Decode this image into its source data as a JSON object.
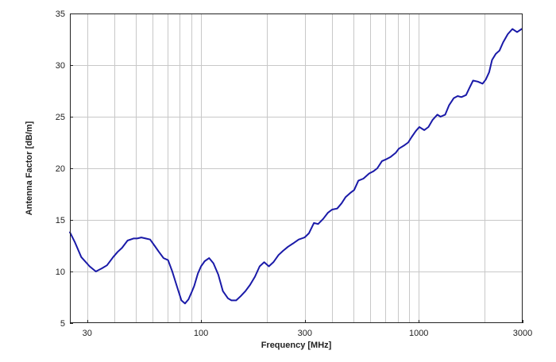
{
  "chart_data": {
    "type": "line",
    "title": "",
    "xlabel": "Frequency [MHz]",
    "ylabel": "Antenna Factor [dB/m]",
    "xscale": "log",
    "xlim": [
      25,
      3000
    ],
    "ylim": [
      5,
      35
    ],
    "xticks": [
      30,
      100,
      300,
      1000,
      3000
    ],
    "xtick_labels": [
      "30",
      "100",
      "300",
      "1000",
      "3000"
    ],
    "yticks": [
      5,
      10,
      15,
      20,
      25,
      30,
      35
    ],
    "ytick_labels": [
      "5",
      "10",
      "15",
      "20",
      "25",
      "30",
      "35"
    ],
    "grid": true,
    "line_color": "#1a1aa8",
    "series": [
      {
        "x": [
          25,
          26.4,
          28.2,
          30.8,
          32.9,
          35.0,
          37.0,
          39.5,
          41.4,
          43.4,
          46.0,
          49.0,
          50.9,
          53.2,
          55.7,
          58.4,
          61.2,
          64.1,
          67.3,
          70.6,
          73.8,
          77.7,
          81.3,
          84.4,
          87.6,
          90.6,
          93.1,
          96.7,
          100,
          104,
          109,
          114,
          120,
          126,
          133,
          138,
          145,
          152,
          160,
          168,
          177,
          186,
          195,
          205,
          215,
          227,
          238,
          251,
          264,
          281,
          299,
          313,
          330,
          345,
          364,
          383,
          400,
          422,
          442,
          461,
          484,
          505,
          528,
          557,
          592,
          618,
          645,
          678,
          713,
          742,
          784,
          810,
          855,
          894,
          926,
          969,
          1006,
          1060,
          1108,
          1158,
          1217,
          1259,
          1323,
          1377,
          1448,
          1509,
          1570,
          1650,
          1711,
          1777,
          1868,
          1964,
          2032,
          2104,
          2171,
          2260,
          2348,
          2441,
          2563,
          2692,
          2828,
          2971
        ],
        "y": [
          13.8,
          12.8,
          11.4,
          10.5,
          10.0,
          10.3,
          10.6,
          11.4,
          11.9,
          12.3,
          13.0,
          13.2,
          13.2,
          13.3,
          13.2,
          13.1,
          12.5,
          11.9,
          11.3,
          11.1,
          10.0,
          8.5,
          7.2,
          6.9,
          7.3,
          8.0,
          8.6,
          9.8,
          10.5,
          11.0,
          11.3,
          10.8,
          9.7,
          8.1,
          7.4,
          7.2,
          7.2,
          7.6,
          8.1,
          8.7,
          9.5,
          10.5,
          10.9,
          10.5,
          10.9,
          11.6,
          12.0,
          12.4,
          12.7,
          13.1,
          13.3,
          13.7,
          14.7,
          14.6,
          15.1,
          15.7,
          16.0,
          16.1,
          16.6,
          17.2,
          17.6,
          17.9,
          18.8,
          19.0,
          19.5,
          19.7,
          20.0,
          20.7,
          20.9,
          21.1,
          21.5,
          21.9,
          22.2,
          22.5,
          23.0,
          23.6,
          24.0,
          23.7,
          24.0,
          24.7,
          25.2,
          25.0,
          25.2,
          26.1,
          26.8,
          27.0,
          26.9,
          27.1,
          27.8,
          28.5,
          28.4,
          28.2,
          28.6,
          29.3,
          30.5,
          31.1,
          31.4,
          32.2,
          33.0,
          33.5,
          33.2,
          33.5
        ]
      }
    ]
  }
}
